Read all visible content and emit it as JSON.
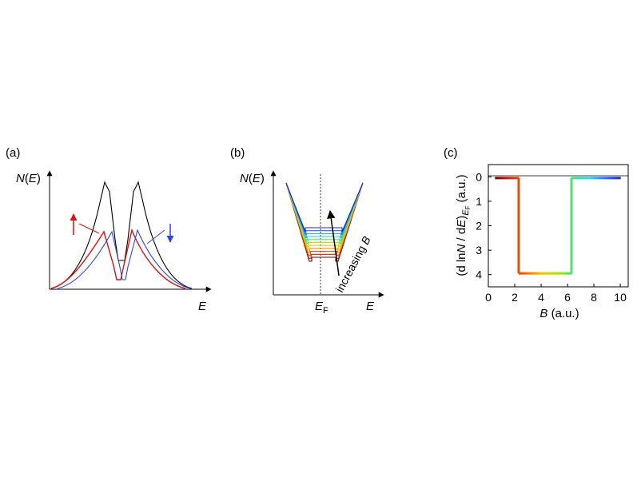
{
  "chart_data": [
    {
      "type": "line",
      "panel_label": "(a)",
      "ylabel": {
        "pre": "N(",
        "var": "E",
        "post": ")",
        "symbol": "N"
      },
      "xlabel": "E",
      "series": [
        {
          "name": "total",
          "color": "#000000"
        },
        {
          "name": "spin up",
          "color": "#dd1111",
          "arrow": "up"
        },
        {
          "name": "spin down",
          "color": "#3344dd",
          "arrow": "down"
        }
      ]
    },
    {
      "type": "line",
      "panel_label": "(b)",
      "ylabel": {
        "pre": "N(",
        "var": "E",
        "post": ")",
        "symbol": "N"
      },
      "xlabel": "E",
      "fermi_label": {
        "main": "E",
        "sub": "F"
      },
      "annotation": {
        "pre": "increasing ",
        "var": "B"
      },
      "b_levels": [
        0,
        1,
        2,
        3,
        4,
        5,
        6,
        7,
        8,
        9,
        10
      ],
      "colormap": [
        "#7a0000",
        "#d42a0a",
        "#ff6a00",
        "#f2c400",
        "#aee600",
        "#40e080",
        "#3ad6e6",
        "#2a7aff",
        "#1a2ab8"
      ]
    },
    {
      "type": "line",
      "panel_label": "(c)",
      "ylabel": {
        "pre": "(d ln",
        "var": "N",
        "mid": " / d",
        "var2": "E",
        "post": ")",
        "sub_main": "E",
        "sub_sub": "F",
        "unit": " (a.u.)"
      },
      "xlabel": {
        "var": "B",
        "unit": " (a.u.)"
      },
      "xlim": [
        0,
        10.6
      ],
      "ylim": [
        4.5,
        -0.5
      ],
      "xticks": [
        0,
        2,
        4,
        6,
        8,
        10
      ],
      "yticks": [
        0,
        1,
        2,
        3,
        4
      ],
      "x": [
        0.5,
        2.3,
        2.3,
        6.3,
        6.3,
        10.0
      ],
      "y": [
        0.05,
        0.05,
        3.95,
        3.95,
        0.05,
        0.05
      ],
      "colormap": [
        "#7a0000",
        "#d42a0a",
        "#ff6a00",
        "#f2c400",
        "#aee600",
        "#40e080",
        "#3ad6e6",
        "#2a7aff",
        "#1a2ab8"
      ]
    }
  ]
}
